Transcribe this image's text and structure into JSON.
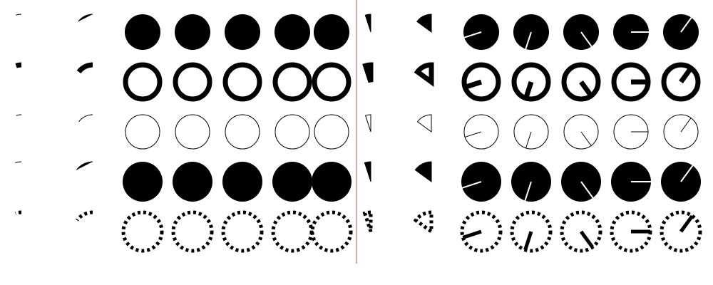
{
  "colors": {
    "ink": "#000000",
    "paper": "#ffffff",
    "divider": "#d98c8c"
  },
  "panels": [
    {
      "name": "left",
      "pie_mode": false
    },
    {
      "name": "right",
      "pie_mode": true
    }
  ],
  "row_styles": [
    {
      "name": "filled",
      "fill": true
    },
    {
      "name": "thick-outline",
      "fill": false,
      "stroke_width": 7
    },
    {
      "name": "thin-outline",
      "fill": false,
      "stroke_width": 1
    },
    {
      "name": "filled-large",
      "fill": true
    },
    {
      "name": "dashed-outline",
      "fill": false,
      "stroke_width": 5,
      "dashed": true
    }
  ],
  "sweep_fractions": [
    0.05,
    0.15,
    0.3,
    0.45,
    0.6,
    0.75,
    0.9
  ],
  "columns": 7
}
